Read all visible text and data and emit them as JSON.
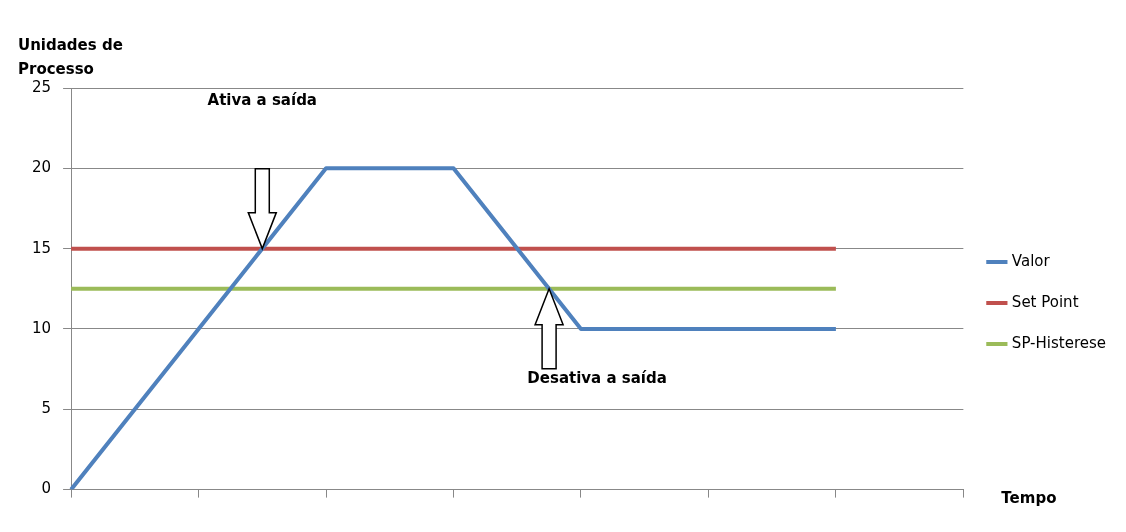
{
  "chart_data": {
    "type": "line",
    "ylabel": "Unidades de Processo",
    "xlabel": "Tempo",
    "categories": [
      null,
      null,
      null,
      null,
      null,
      null,
      null,
      null
    ],
    "series": [
      {
        "name": "Valor",
        "color": "#4f81bd",
        "values": [
          0,
          10,
          20,
          20,
          10,
          10,
          10,
          null
        ]
      },
      {
        "name": "Set Point",
        "color": "#c0504d",
        "values": [
          15,
          15,
          15,
          15,
          15,
          15,
          15,
          null
        ]
      },
      {
        "name": "SP-Histerese",
        "color": "#9bbb59",
        "values": [
          12.5,
          12.5,
          12.5,
          12.5,
          12.5,
          12.5,
          12.5,
          null
        ]
      }
    ],
    "ylim": [
      0,
      25
    ],
    "yticks": [
      0,
      5,
      10,
      15,
      20,
      25
    ],
    "grid": "y",
    "legend": "right",
    "marker": "none",
    "line_style": "solid",
    "annotations": [
      "Ativa a saída",
      "Desativa a saída"
    ]
  }
}
